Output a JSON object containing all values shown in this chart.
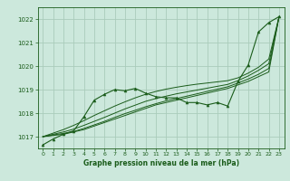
{
  "title": "Graphe pression niveau de la mer (hPa)",
  "background_color": "#cce8dc",
  "grid_color": "#aaccbb",
  "line_color": "#1a5c1a",
  "xlim": [
    -0.5,
    23.5
  ],
  "ylim": [
    1016.5,
    1022.5
  ],
  "yticks": [
    1017,
    1018,
    1019,
    1020,
    1021,
    1022
  ],
  "xticks": [
    0,
    1,
    2,
    3,
    4,
    5,
    6,
    7,
    8,
    9,
    10,
    11,
    12,
    13,
    14,
    15,
    16,
    17,
    18,
    19,
    20,
    21,
    22,
    23
  ],
  "main_series": [
    1016.65,
    1016.9,
    1017.1,
    1017.25,
    1017.85,
    1018.55,
    1018.8,
    1019.0,
    1018.95,
    1019.05,
    1018.85,
    1018.7,
    1018.65,
    1018.65,
    1018.45,
    1018.45,
    1018.35,
    1018.45,
    1018.3,
    1019.35,
    1020.05,
    1021.45,
    1021.85,
    1022.1
  ],
  "smooth_lines": [
    [
      1017.0,
      1017.05,
      1017.1,
      1017.2,
      1017.3,
      1017.45,
      1017.6,
      1017.75,
      1017.9,
      1018.05,
      1018.2,
      1018.35,
      1018.45,
      1018.55,
      1018.65,
      1018.75,
      1018.85,
      1018.95,
      1019.05,
      1019.2,
      1019.35,
      1019.55,
      1019.75,
      1022.1
    ],
    [
      1017.0,
      1017.07,
      1017.14,
      1017.22,
      1017.35,
      1017.5,
      1017.65,
      1017.82,
      1017.98,
      1018.12,
      1018.27,
      1018.4,
      1018.52,
      1018.62,
      1018.72,
      1018.82,
      1018.92,
      1019.02,
      1019.12,
      1019.28,
      1019.45,
      1019.65,
      1019.9,
      1022.1
    ],
    [
      1017.0,
      1017.1,
      1017.2,
      1017.32,
      1017.48,
      1017.65,
      1017.82,
      1018.0,
      1018.18,
      1018.34,
      1018.5,
      1018.62,
      1018.72,
      1018.82,
      1018.9,
      1018.98,
      1019.06,
      1019.14,
      1019.22,
      1019.38,
      1019.58,
      1019.82,
      1020.1,
      1022.1
    ],
    [
      1017.0,
      1017.15,
      1017.3,
      1017.48,
      1017.68,
      1017.9,
      1018.1,
      1018.3,
      1018.48,
      1018.65,
      1018.8,
      1018.92,
      1019.02,
      1019.1,
      1019.17,
      1019.23,
      1019.28,
      1019.33,
      1019.38,
      1019.5,
      1019.7,
      1019.95,
      1020.3,
      1022.1
    ]
  ]
}
